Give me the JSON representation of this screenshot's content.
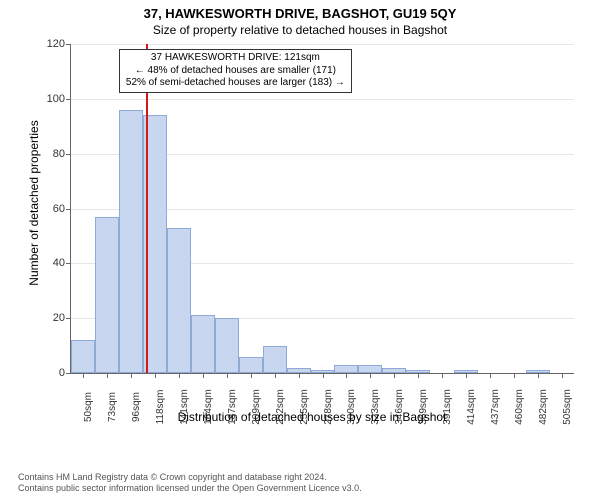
{
  "title": "37, HAWKESWORTH DRIVE, BAGSHOT, GU19 5QY",
  "subtitle": "Size of property relative to detached houses in Bagshot",
  "yaxis": {
    "title": "Number of detached properties",
    "min": 0,
    "max": 120,
    "step": 20,
    "ticks": [
      0,
      20,
      40,
      60,
      80,
      100,
      120
    ]
  },
  "xaxis": {
    "title": "Distribution of detached houses by size in Bagshot",
    "categories": [
      "50sqm",
      "73sqm",
      "96sqm",
      "118sqm",
      "141sqm",
      "164sqm",
      "187sqm",
      "209sqm",
      "232sqm",
      "255sqm",
      "278sqm",
      "300sqm",
      "323sqm",
      "346sqm",
      "369sqm",
      "391sqm",
      "414sqm",
      "437sqm",
      "460sqm",
      "482sqm",
      "505sqm"
    ]
  },
  "bars": {
    "values": [
      12,
      57,
      96,
      94,
      53,
      21,
      20,
      6,
      10,
      2,
      1,
      3,
      3,
      2,
      1,
      0,
      1,
      0,
      0,
      1,
      0
    ],
    "fill_color": "#c8d6ef",
    "border_color": "#8faad7",
    "width_fraction": 1.0
  },
  "marker": {
    "position_index": 3.15,
    "height_value": 120,
    "color": "#d11919"
  },
  "callout": {
    "lines": [
      "37 HAWKESWORTH DRIVE: 121sqm",
      "← 48% of detached houses are smaller (171)",
      "52% of semi-detached houses are larger (183) →"
    ],
    "left_index": 2.0,
    "top_value": 118
  },
  "grid": {
    "color": "#e6e6e6"
  },
  "footer": {
    "line1": "Contains HM Land Registry data © Crown copyright and database right 2024.",
    "line2": "Contains public sector information licensed under the Open Government Licence v3.0."
  },
  "fontsizes": {
    "title": 13,
    "subtitle": 12,
    "axis_title": 12,
    "tick": 11,
    "xtick": 10,
    "callout": 10,
    "footer": 9
  }
}
